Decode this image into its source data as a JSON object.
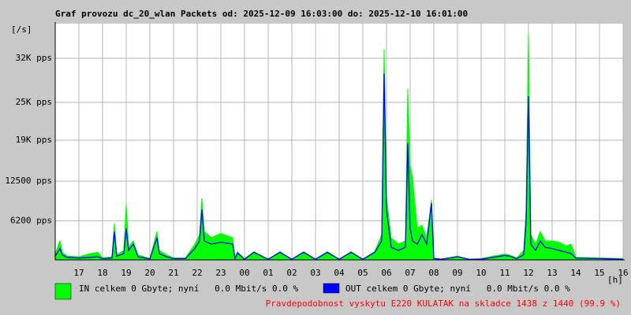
{
  "chart_data": {
    "type": "line",
    "title": "Graf provozu dc_20_wlan Packets od: 2025-12-09 16:03:00 do: 2025-12-10 16:01:00",
    "y_label": "[/s]",
    "x_label": "[h]",
    "annotation": "Pravdepodobnost vyskytu E220 KULATAK na skladce 1438 z 1440 (99.9 %)",
    "annotation_color": "#ff0000",
    "grid": true,
    "xlim": [
      0,
      24
    ],
    "xticks": [
      {
        "value": 1,
        "label": "17"
      },
      {
        "value": 2,
        "label": "18"
      },
      {
        "value": 3,
        "label": "19"
      },
      {
        "value": 4,
        "label": "20"
      },
      {
        "value": 5,
        "label": "21"
      },
      {
        "value": 6,
        "label": "22"
      },
      {
        "value": 7,
        "label": "23"
      },
      {
        "value": 8,
        "label": "00"
      },
      {
        "value": 9,
        "label": "01"
      },
      {
        "value": 10,
        "label": "02"
      },
      {
        "value": 11,
        "label": "03"
      },
      {
        "value": 12,
        "label": "04"
      },
      {
        "value": 13,
        "label": "05"
      },
      {
        "value": 14,
        "label": "06"
      },
      {
        "value": 15,
        "label": "07"
      },
      {
        "value": 16,
        "label": "08"
      },
      {
        "value": 17,
        "label": "09"
      },
      {
        "value": 18,
        "label": "10"
      },
      {
        "value": 19,
        "label": "11"
      },
      {
        "value": 20,
        "label": "12"
      },
      {
        "value": 21,
        "label": "13"
      },
      {
        "value": 22,
        "label": "14"
      },
      {
        "value": 23,
        "label": "15"
      },
      {
        "value": 24,
        "label": "16"
      }
    ],
    "ylim": [
      0,
      37500
    ],
    "yticks": [
      {
        "value": 6200,
        "label": "6200 pps"
      },
      {
        "value": 12500,
        "label": "12500 pps"
      },
      {
        "value": 19000,
        "label": "19K pps"
      },
      {
        "value": 25000,
        "label": "25K pps"
      },
      {
        "value": 32000,
        "label": "32K pps"
      }
    ],
    "x": [
      0,
      0.2,
      0.3,
      0.5,
      1,
      1.5,
      1.8,
      2,
      2.4,
      2.5,
      2.6,
      2.9,
      3,
      3.1,
      3.3,
      3.5,
      4,
      4.3,
      4.4,
      4.7,
      5,
      5.5,
      5.9,
      6.1,
      6.2,
      6.3,
      6.6,
      7,
      7.5,
      7.6,
      7.7,
      8,
      8.4,
      9,
      9.5,
      10,
      10.5,
      11,
      11.5,
      12,
      12.5,
      13,
      13.5,
      13.8,
      13.9,
      14,
      14.2,
      14.5,
      14.8,
      14.9,
      15,
      15.1,
      15.3,
      15.5,
      15.7,
      15.9,
      16,
      16.3,
      17,
      17.5,
      18,
      18.5,
      19,
      19.2,
      19.5,
      19.8,
      19.9,
      20,
      20.1,
      20.3,
      20.5,
      20.7,
      21,
      21.3,
      21.6,
      21.8,
      22,
      23,
      24
    ],
    "series": [
      {
        "name": "IN celkem 0 Gbyte; nyní   0.0 Mbit/s 0.0 %",
        "color": "#00ff00",
        "style": "area",
        "values": [
          1000,
          3000,
          1200,
          600,
          500,
          1000,
          1200,
          300,
          500,
          5800,
          800,
          1500,
          8800,
          2000,
          3000,
          800,
          200,
          4500,
          1500,
          800,
          300,
          300,
          2500,
          4000,
          9800,
          4500,
          3500,
          4200,
          3500,
          300,
          1300,
          200,
          1300,
          100,
          1300,
          100,
          1300,
          100,
          1300,
          100,
          1300,
          100,
          1300,
          4000,
          33500,
          10000,
          3500,
          2500,
          3000,
          27200,
          15000,
          13000,
          5000,
          5500,
          3500,
          9500,
          300,
          100,
          600,
          100,
          200,
          600,
          900,
          800,
          300,
          1500,
          8000,
          36000,
          4000,
          2500,
          4500,
          3000,
          3000,
          2800,
          2200,
          2500,
          400,
          300,
          200
        ]
      },
      {
        "name": "OUT celkem 0 Gbyte; nyní   0.0 Mbit/s 0.0 %",
        "color": "#0000ff",
        "style": "line",
        "values": [
          600,
          1800,
          800,
          400,
          300,
          400,
          500,
          200,
          300,
          4500,
          600,
          1000,
          5000,
          1500,
          2500,
          500,
          150,
          3500,
          1000,
          500,
          200,
          200,
          1800,
          3000,
          8000,
          3000,
          2500,
          2800,
          2500,
          200,
          1100,
          100,
          1200,
          100,
          1200,
          100,
          1200,
          100,
          1200,
          100,
          1200,
          100,
          1200,
          3000,
          29600,
          8000,
          2000,
          1500,
          2000,
          18500,
          5000,
          3000,
          2500,
          4000,
          2500,
          9000,
          200,
          100,
          500,
          100,
          100,
          400,
          700,
          600,
          200,
          800,
          6000,
          26000,
          2500,
          1500,
          3000,
          2000,
          1800,
          1500,
          1200,
          1000,
          300,
          200,
          100
        ]
      }
    ]
  }
}
